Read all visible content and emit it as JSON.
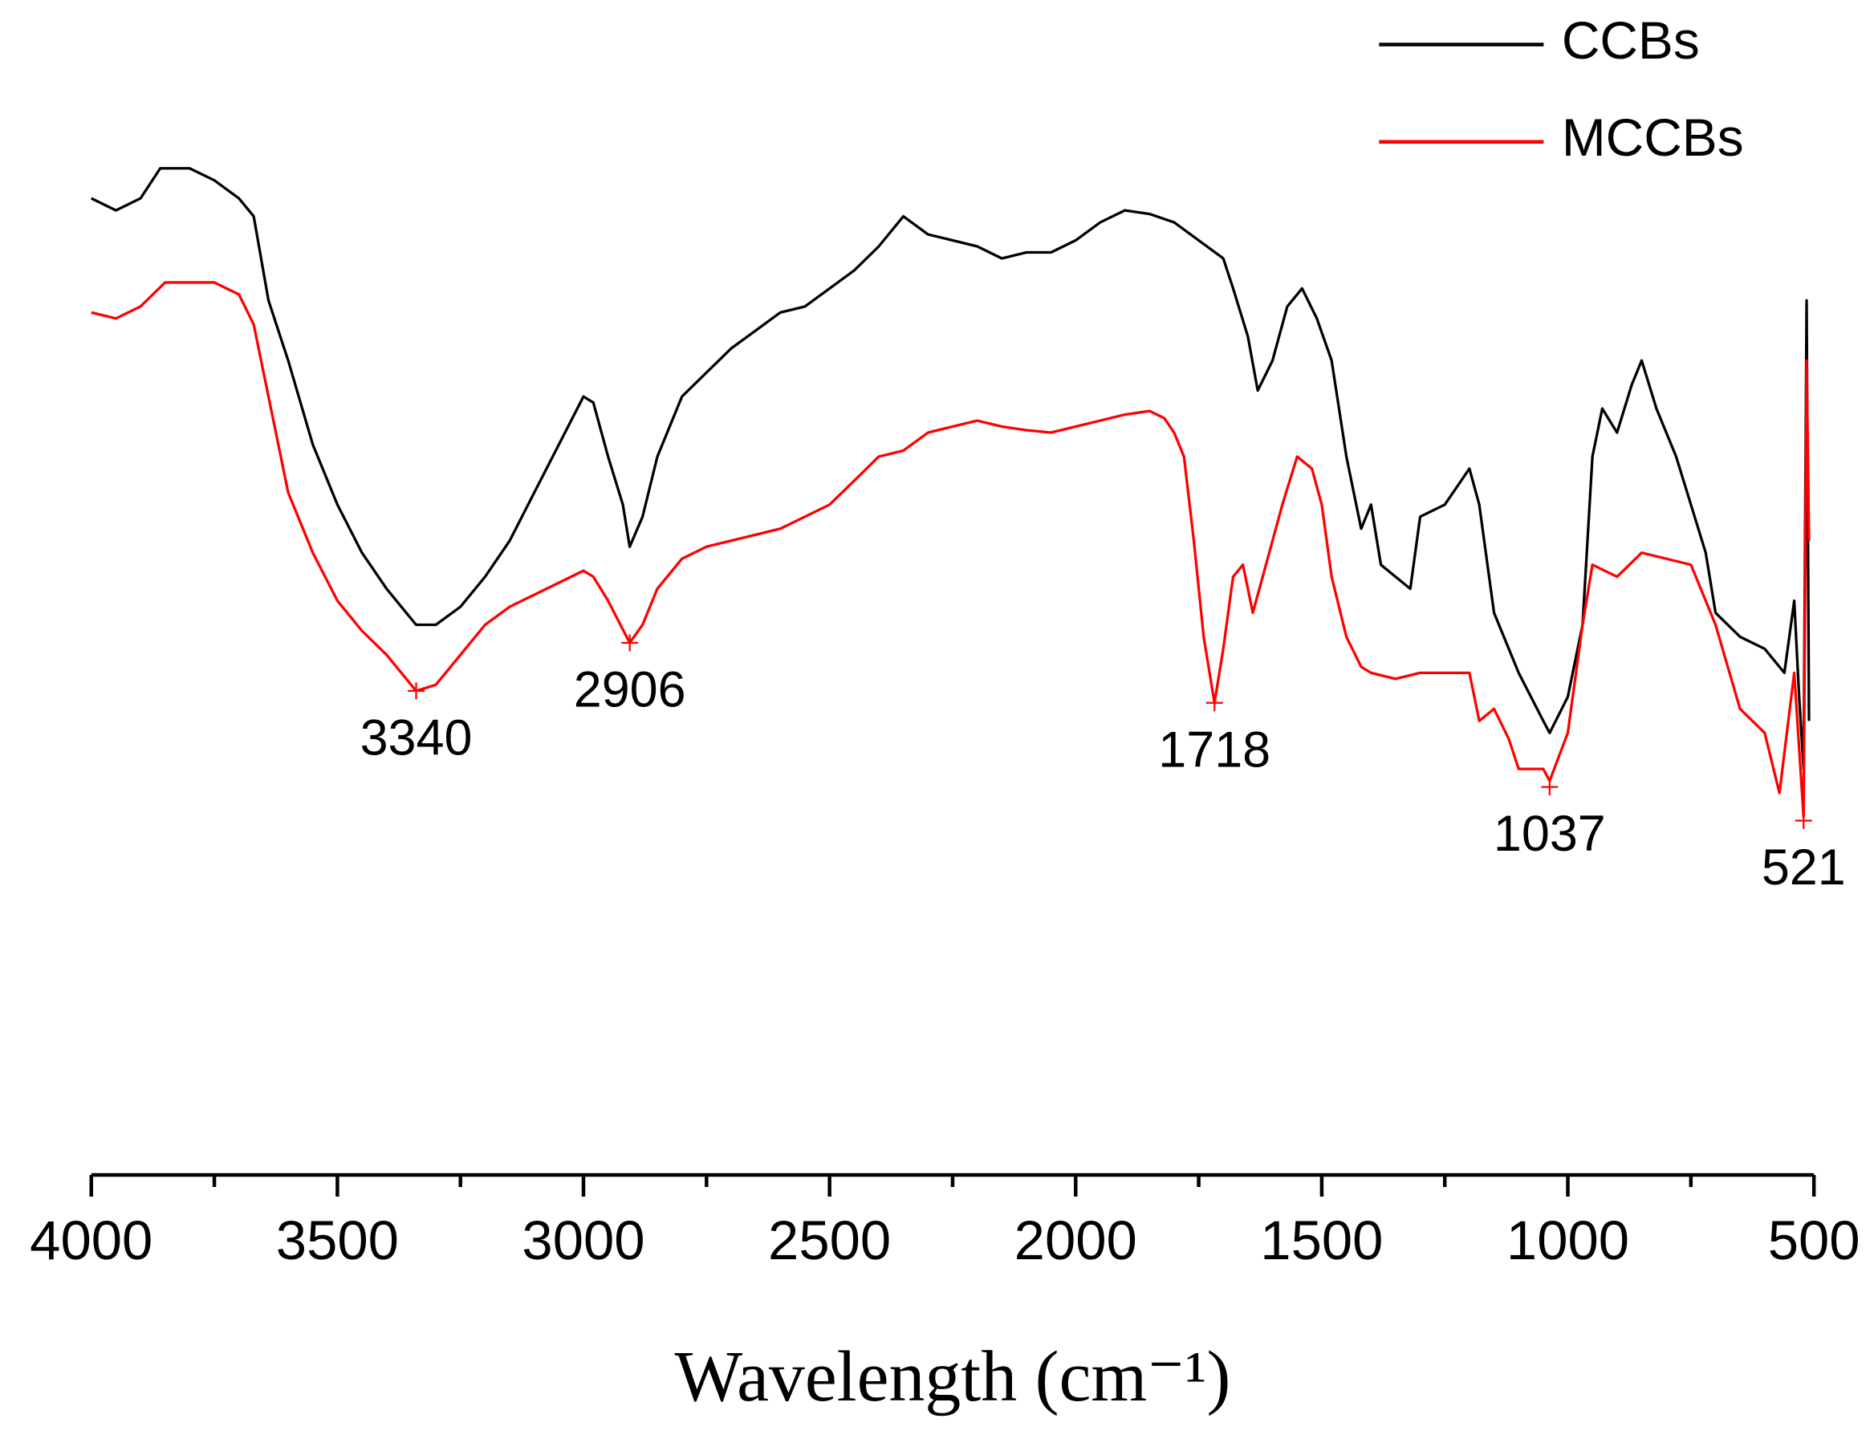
{
  "chart_data": {
    "type": "line",
    "x_label": "Wavelength (cm⁻¹)",
    "xlim": [
      4000,
      500
    ],
    "ylim": [
      0,
      100
    ],
    "xticks": [
      4000,
      3500,
      3000,
      2500,
      2000,
      1500,
      1000,
      500
    ],
    "xminor": [
      3750,
      3250,
      2750,
      2250,
      1750,
      1250,
      750
    ],
    "legend": "top-right",
    "series": [
      {
        "name": "CCBs",
        "color": "#000000",
        "x": [
          4000,
          3950,
          3900,
          3860,
          3800,
          3750,
          3700,
          3670,
          3640,
          3600,
          3550,
          3500,
          3450,
          3400,
          3340,
          3300,
          3250,
          3200,
          3150,
          3100,
          3050,
          3000,
          2980,
          2950,
          2920,
          2906,
          2880,
          2850,
          2800,
          2750,
          2700,
          2650,
          2600,
          2550,
          2500,
          2450,
          2400,
          2350,
          2300,
          2250,
          2200,
          2150,
          2100,
          2050,
          2000,
          1950,
          1900,
          1850,
          1800,
          1750,
          1700,
          1680,
          1650,
          1630,
          1600,
          1570,
          1540,
          1510,
          1480,
          1450,
          1420,
          1400,
          1380,
          1350,
          1320,
          1300,
          1250,
          1200,
          1180,
          1150,
          1120,
          1100,
          1050,
          1037,
          1000,
          970,
          950,
          930,
          900,
          870,
          850,
          820,
          780,
          750,
          720,
          700,
          650,
          600,
          560,
          540,
          530,
          521,
          515,
          510
        ],
        "values": [
          81.3,
          80.3,
          81.3,
          83.8,
          83.8,
          82.8,
          81.3,
          79.8,
          72.8,
          67.8,
          60.8,
          55.8,
          51.8,
          48.8,
          45.8,
          45.8,
          47.3,
          49.8,
          52.8,
          56.8,
          60.8,
          64.8,
          64.3,
          59.8,
          55.8,
          52.3,
          54.8,
          59.8,
          64.8,
          66.8,
          68.8,
          70.3,
          71.8,
          72.3,
          73.8,
          75.3,
          77.3,
          79.8,
          78.3,
          77.8,
          77.3,
          76.3,
          76.8,
          76.8,
          77.8,
          79.3,
          80.3,
          80,
          79.3,
          77.8,
          76.3,
          73.8,
          69.8,
          65.3,
          67.8,
          72.3,
          73.8,
          71.3,
          67.8,
          59.8,
          53.8,
          55.8,
          50.8,
          49.8,
          48.8,
          54.8,
          55.8,
          58.8,
          55.8,
          46.8,
          43.8,
          41.8,
          37.8,
          36.8,
          39.8,
          45.8,
          59.8,
          63.8,
          61.8,
          65.8,
          67.8,
          63.8,
          59.8,
          55.8,
          51.8,
          46.8,
          44.8,
          43.8,
          41.8,
          47.8,
          39.8,
          33.8,
          72.8,
          37.8
        ]
      },
      {
        "name": "MCCBs",
        "color": "#ff0000",
        "x": [
          4000,
          3950,
          3900,
          3850,
          3800,
          3750,
          3700,
          3670,
          3640,
          3600,
          3550,
          3500,
          3450,
          3400,
          3340,
          3300,
          3250,
          3200,
          3150,
          3100,
          3050,
          3000,
          2980,
          2950,
          2906,
          2880,
          2850,
          2800,
          2750,
          2700,
          2650,
          2600,
          2550,
          2500,
          2450,
          2400,
          2350,
          2300,
          2250,
          2200,
          2150,
          2100,
          2050,
          2000,
          1950,
          1900,
          1850,
          1820,
          1800,
          1780,
          1760,
          1740,
          1718,
          1700,
          1680,
          1660,
          1640,
          1620,
          1580,
          1550,
          1520,
          1500,
          1480,
          1450,
          1420,
          1400,
          1350,
          1300,
          1250,
          1200,
          1180,
          1150,
          1120,
          1100,
          1050,
          1037,
          1000,
          970,
          950,
          900,
          850,
          800,
          750,
          700,
          650,
          600,
          570,
          540,
          521,
          515,
          510
        ],
        "values": [
          71.8,
          71.3,
          72.3,
          74.3,
          74.3,
          74.3,
          73.3,
          70.8,
          64.8,
          56.8,
          51.8,
          47.8,
          45.3,
          43.3,
          40.3,
          40.8,
          43.3,
          45.8,
          47.3,
          48.3,
          49.3,
          50.3,
          49.8,
          47.8,
          44.3,
          45.8,
          48.8,
          51.3,
          52.3,
          52.8,
          53.3,
          53.8,
          54.8,
          55.8,
          57.8,
          59.8,
          60.3,
          61.8,
          62.3,
          62.8,
          62.3,
          62,
          61.8,
          62.3,
          62.8,
          63.3,
          63.6,
          63,
          61.8,
          59.8,
          52.8,
          44.8,
          39.3,
          43.8,
          49.8,
          50.8,
          46.8,
          49.8,
          55.8,
          59.8,
          58.8,
          55.8,
          49.8,
          44.8,
          42.3,
          41.8,
          41.3,
          41.8,
          41.8,
          41.8,
          37.8,
          38.8,
          36.3,
          33.8,
          33.8,
          32.8,
          36.8,
          45.8,
          50.8,
          49.8,
          51.8,
          51.3,
          50.8,
          45.8,
          38.8,
          36.8,
          31.8,
          41.8,
          29.8,
          67.8,
          52.8
        ]
      }
    ],
    "peaks": [
      {
        "x": 3340,
        "y": 40.3
      },
      {
        "x": 2906,
        "y": 44.3
      },
      {
        "x": 1718,
        "y": 39.3
      },
      {
        "x": 1037,
        "y": 32.3
      },
      {
        "x": 521,
        "y": 29.5
      }
    ]
  }
}
